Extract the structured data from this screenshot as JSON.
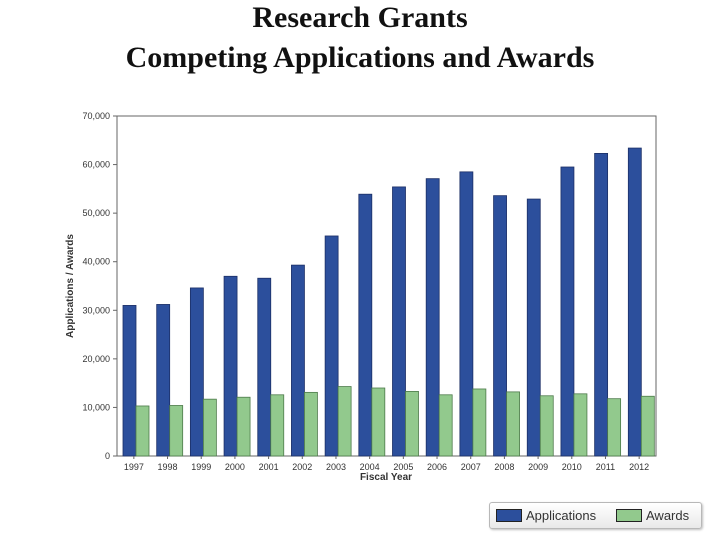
{
  "title_line1": "Research Grants",
  "title_line2": "Competing Applications and Awards",
  "chart_data": {
    "type": "bar",
    "xlabel": "Fiscal Year",
    "ylabel": "Applications / Awards",
    "ylim": [
      0,
      70000
    ],
    "yticks": [
      0,
      10000,
      20000,
      30000,
      40000,
      50000,
      60000,
      70000
    ],
    "ytick_labels": [
      "0",
      "10,000",
      "20,000",
      "30,000",
      "40,000",
      "50,000",
      "60,000",
      "70,000"
    ],
    "categories": [
      "1997",
      "1998",
      "1999",
      "2000",
      "2001",
      "2002",
      "2003",
      "2004",
      "2005",
      "2006",
      "2007",
      "2008",
      "2009",
      "2010",
      "2011",
      "2012"
    ],
    "series": [
      {
        "name": "Applications",
        "color": "#2c4f9c",
        "values": [
          31000,
          31200,
          34600,
          37000,
          36600,
          39300,
          45300,
          53900,
          55400,
          57100,
          58500,
          53600,
          52900,
          59500,
          62300,
          63400
        ]
      },
      {
        "name": "Awards",
        "color": "#92c98d",
        "values": [
          10300,
          10400,
          11700,
          12100,
          12600,
          13100,
          14300,
          14000,
          13300,
          12600,
          13800,
          13200,
          12400,
          12800,
          11800,
          12300
        ]
      }
    ],
    "legend_position": "bottom-right",
    "grid": false
  }
}
